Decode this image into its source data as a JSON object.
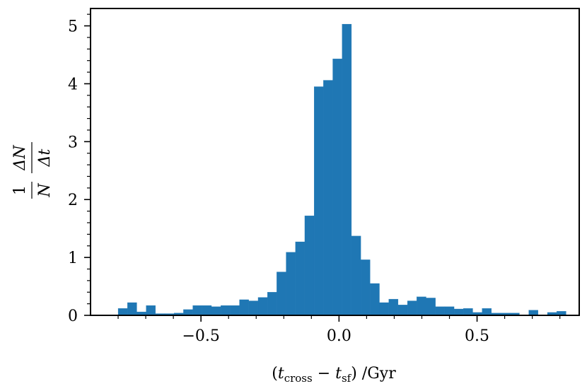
{
  "chart_data": {
    "type": "bar",
    "subtype": "histogram",
    "bar_color": "#1f77b4",
    "edge_color": "#000000",
    "xlim": [
      -0.9,
      0.87
    ],
    "ylim": [
      0,
      5.3
    ],
    "x_ticks": [
      {
        "value": -0.5,
        "label": "−0.5"
      },
      {
        "value": 0.0,
        "label": "0.0"
      },
      {
        "value": 0.5,
        "label": "0.5"
      }
    ],
    "y_ticks": [
      {
        "value": 0,
        "label": "0"
      },
      {
        "value": 1,
        "label": "1"
      },
      {
        "value": 2,
        "label": "2"
      },
      {
        "value": 3,
        "label": "3"
      },
      {
        "value": 4,
        "label": "4"
      },
      {
        "value": 5,
        "label": "5"
      }
    ],
    "bin_start": -0.8,
    "bin_width": 0.0338,
    "values": [
      0.12,
      0.22,
      0.06,
      0.17,
      0.03,
      0.03,
      0.04,
      0.1,
      0.17,
      0.17,
      0.15,
      0.17,
      0.17,
      0.27,
      0.25,
      0.31,
      0.4,
      0.75,
      1.09,
      1.27,
      1.72,
      3.95,
      4.06,
      4.43,
      5.03,
      1.37,
      0.96,
      0.55,
      0.22,
      0.28,
      0.18,
      0.25,
      0.32,
      0.3,
      0.15,
      0.15,
      0.11,
      0.12,
      0.05,
      0.12,
      0.04,
      0.04,
      0.04,
      0.01,
      0.09,
      0.01,
      0.05,
      0.07,
      0.01
    ],
    "xlabel": {
      "open": "(",
      "t": "t",
      "sub1": "cross",
      "minus": " − ",
      "sub2": "sf",
      "close": ") /Gyr"
    },
    "ylabel": {
      "num1": "1",
      "den1": "N",
      "num2": "ΔN",
      "den2": "Δt"
    }
  }
}
